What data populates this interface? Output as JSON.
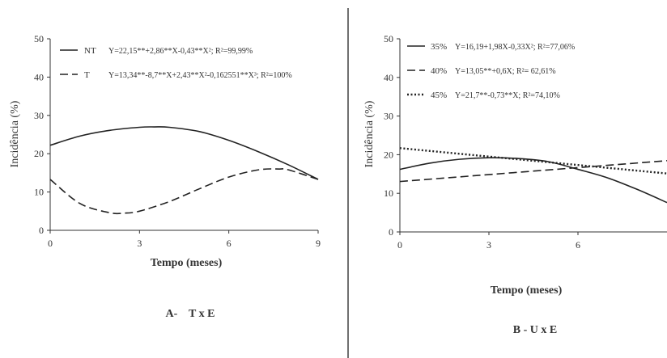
{
  "chart_data": [
    {
      "type": "line",
      "caption": "A-    T x E",
      "xlabel": "Tempo (meses)",
      "ylabel": "Incidência (%)",
      "xlim": [
        0,
        9
      ],
      "ylim": [
        0,
        50
      ],
      "x_ticks": [
        "0",
        "3",
        "6",
        "9"
      ],
      "y_ticks": [
        "0",
        "10",
        "20",
        "30",
        "40",
        "50"
      ],
      "legend_position": "top",
      "grid": false,
      "series": [
        {
          "name": "NT",
          "equation": "Y=22,15**+2,86**X-0,43**X²; R²=99,99%",
          "style": "solid",
          "x": [
            0,
            1,
            2,
            3,
            3.5,
            4,
            5,
            6,
            7,
            8,
            9
          ],
          "y": [
            22.2,
            24.6,
            26.1,
            26.9,
            27.0,
            26.9,
            25.8,
            23.5,
            20.5,
            17.1,
            13.3
          ]
        },
        {
          "name": "T",
          "equation": "Y=13,34**-8,7**X+2,43**X²-0,162551**X³; R²=100%",
          "style": "dashed",
          "x": [
            0,
            1,
            2,
            2.5,
            3,
            4,
            5,
            6,
            7,
            7.7,
            8,
            9
          ],
          "y": [
            13.3,
            7.0,
            4.6,
            4.5,
            5.0,
            7.5,
            10.8,
            13.9,
            15.8,
            16.0,
            15.8,
            13.3
          ]
        }
      ]
    },
    {
      "type": "line",
      "caption": "B - U x E",
      "xlabel": "Tempo (meses)",
      "ylabel": "Incidência (%)",
      "xlim": [
        0,
        9
      ],
      "ylim": [
        0,
        50
      ],
      "x_ticks": [
        "0",
        "3",
        "6"
      ],
      "y_ticks": [
        "0",
        "10",
        "20",
        "30",
        "40",
        "50"
      ],
      "legend_position": "top",
      "grid": false,
      "series": [
        {
          "name": "35%",
          "equation": "Y=16,19+1,98X-0,33X²; R²=77,06%",
          "style": "solid",
          "x": [
            0,
            1,
            2,
            3,
            4,
            5,
            6,
            7,
            8,
            9
          ],
          "y": [
            16.2,
            17.8,
            18.8,
            19.2,
            19.0,
            18.2,
            16.2,
            14.0,
            11.0,
            7.6
          ]
        },
        {
          "name": "40%",
          "equation": "Y=13,05**+0,6X; R²= 62,61%",
          "style": "dashed",
          "x": [
            0,
            9
          ],
          "y": [
            13.05,
            18.45
          ]
        },
        {
          "name": "45%",
          "equation": "Y=21,7**-0,73**X; R²=74,10%",
          "style": "dotted",
          "x": [
            0,
            9
          ],
          "y": [
            21.7,
            15.13
          ]
        }
      ]
    }
  ]
}
